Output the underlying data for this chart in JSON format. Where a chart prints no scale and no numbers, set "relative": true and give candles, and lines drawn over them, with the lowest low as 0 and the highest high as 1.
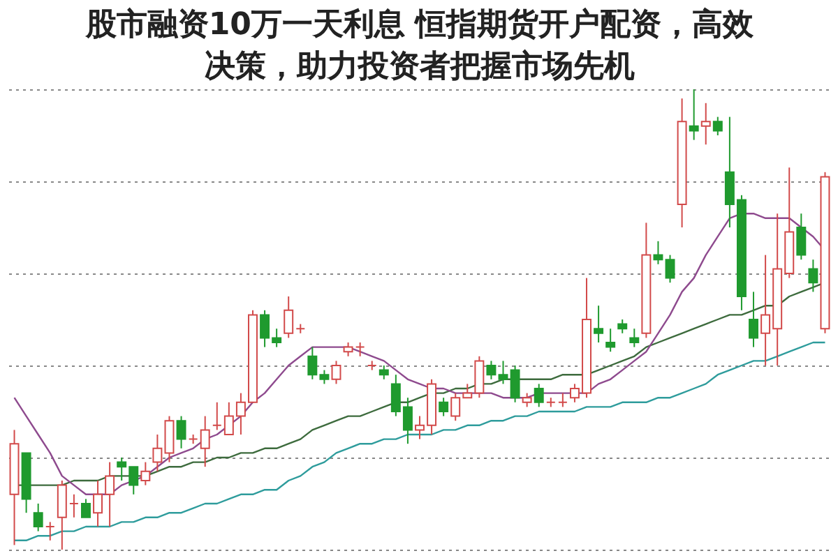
{
  "chart_data": {
    "type": "candlestick",
    "title": "股市融资10万一天利息 恒指期货开户配资，高效决策，助力投资者把握市场先机",
    "relative": true,
    "grid": "y",
    "categories": [
      null,
      null,
      null,
      null,
      null,
      null,
      null,
      null,
      null,
      null,
      null,
      null,
      null,
      null,
      null,
      null,
      null,
      null,
      null,
      null,
      null,
      null,
      null,
      null,
      null,
      null,
      null,
      null,
      null,
      null,
      null,
      null,
      null,
      null,
      null,
      null,
      null,
      null,
      null,
      null,
      null,
      null,
      null,
      null,
      null,
      null,
      null,
      null,
      null,
      null,
      null,
      null,
      null,
      null,
      null,
      null,
      null,
      null,
      null,
      null,
      null,
      null,
      null,
      null,
      null,
      null,
      null,
      null,
      null
    ],
    "ohlc": [
      [
        0.12,
        0.26,
        0.01,
        0.23
      ],
      [
        0.21,
        0.21,
        0.08,
        0.11
      ],
      [
        0.08,
        0.1,
        0.04,
        0.05
      ],
      [
        0.05,
        0.06,
        0.02,
        0.05
      ],
      [
        0.07,
        0.15,
        0,
        0.14
      ],
      [
        0.1,
        0.12,
        0.07,
        0.1
      ],
      [
        0.1,
        0.11,
        0.07,
        0.07
      ],
      [
        0.08,
        0.15,
        0.05,
        0.12
      ],
      [
        0.12,
        0.19,
        0.05,
        0.16
      ],
      [
        0.19,
        0.2,
        0.15,
        0.18
      ],
      [
        0.18,
        0.18,
        0.12,
        0.14
      ],
      [
        0.15,
        0.19,
        0.14,
        0.17
      ],
      [
        0.19,
        0.25,
        0.17,
        0.22
      ],
      [
        0.21,
        0.29,
        0.19,
        0.28
      ],
      [
        0.28,
        0.29,
        0.22,
        0.24
      ],
      [
        0.24,
        0.25,
        0.23,
        0.24
      ],
      [
        0.22,
        0.29,
        0.18,
        0.26
      ],
      [
        0.27,
        0.32,
        0.26,
        0.27
      ],
      [
        0.25,
        0.32,
        0.25,
        0.29
      ],
      [
        0.29,
        0.34,
        0.25,
        0.32
      ],
      [
        0.32,
        0.52,
        0.32,
        0.51
      ],
      [
        0.51,
        0.52,
        0.44,
        0.46
      ],
      [
        0.46,
        0.48,
        0.44,
        0.45
      ],
      [
        0.47,
        0.55,
        0.46,
        0.52
      ],
      [
        0.48,
        0.49,
        0.47,
        0.48
      ],
      [
        0.42,
        0.44,
        0.37,
        0.38
      ],
      [
        0.38,
        0.39,
        0.36,
        0.37
      ],
      [
        0.37,
        0.41,
        0.36,
        0.4
      ],
      [
        0.43,
        0.45,
        0.42,
        0.44
      ],
      [
        0.44,
        0.45,
        0.42,
        0.44
      ],
      [
        0.4,
        0.41,
        0.39,
        0.4
      ],
      [
        0.39,
        0.4,
        0.37,
        0.38
      ],
      [
        0.36,
        0.38,
        0.29,
        0.3
      ],
      [
        0.31,
        0.33,
        0.23,
        0.26
      ],
      [
        0.26,
        0.29,
        0.24,
        0.27
      ],
      [
        0.27,
        0.37,
        0.25,
        0.36
      ],
      [
        0.32,
        0.33,
        0.29,
        0.3
      ],
      [
        0.29,
        0.34,
        0.28,
        0.33
      ],
      [
        0.33,
        0.36,
        0.33,
        0.34
      ],
      [
        0.34,
        0.42,
        0.33,
        0.41
      ],
      [
        0.4,
        0.41,
        0.37,
        0.38
      ],
      [
        0.38,
        0.41,
        0.36,
        0.37
      ],
      [
        0.39,
        0.4,
        0.32,
        0.33
      ],
      [
        0.32,
        0.34,
        0.31,
        0.33
      ],
      [
        0.35,
        0.36,
        0.31,
        0.32
      ],
      [
        0.32,
        0.33,
        0.31,
        0.32
      ],
      [
        0.32,
        0.34,
        0.31,
        0.32
      ],
      [
        0.33,
        0.36,
        0.32,
        0.35
      ],
      [
        0.34,
        0.59,
        0.33,
        0.5
      ],
      [
        0.48,
        0.53,
        0.45,
        0.47
      ],
      [
        0.45,
        0.48,
        0.43,
        0.44
      ],
      [
        0.49,
        0.5,
        0.47,
        0.48
      ],
      [
        0.46,
        0.48,
        0.44,
        0.45
      ],
      [
        0.47,
        0.71,
        0.46,
        0.64
      ],
      [
        0.64,
        0.67,
        0.62,
        0.63
      ],
      [
        0.63,
        0.64,
        0.58,
        0.59
      ],
      [
        0.75,
        0.98,
        0.7,
        0.93
      ],
      [
        0.92,
        1,
        0.89,
        0.91
      ],
      [
        0.92,
        0.97,
        0.88,
        0.93
      ],
      [
        0.93,
        0.94,
        0.9,
        0.91
      ],
      [
        0.82,
        0.94,
        0.7,
        0.75
      ],
      [
        0.76,
        0.77,
        0.52,
        0.55
      ],
      [
        0.5,
        0.56,
        0.44,
        0.46
      ],
      [
        0.47,
        0.64,
        0.4,
        0.51
      ],
      [
        0.48,
        0.73,
        0.4,
        0.61
      ],
      [
        0.6,
        0.83,
        0.59,
        0.69
      ],
      [
        0.7,
        0.73,
        0.63,
        0.64
      ],
      [
        0.61,
        0.63,
        0.56,
        0.58
      ],
      [
        0.48,
        0.82,
        0.47,
        0.81
      ]
    ],
    "series": [
      {
        "type": "line",
        "color": "#2e9c9c",
        "values": [
          0.02,
          0.02,
          0.03,
          0.03,
          0.04,
          0.04,
          0.05,
          0.05,
          0.05,
          0.06,
          0.06,
          0.07,
          0.07,
          0.08,
          0.08,
          0.09,
          0.1,
          0.1,
          0.11,
          0.12,
          0.12,
          0.13,
          0.13,
          0.15,
          0.16,
          0.18,
          0.19,
          0.21,
          0.22,
          0.23,
          0.23,
          0.24,
          0.24,
          0.25,
          0.25,
          0.25,
          0.26,
          0.26,
          0.27,
          0.27,
          0.28,
          0.28,
          0.29,
          0.29,
          0.3,
          0.3,
          0.3,
          0.3,
          0.31,
          0.31,
          0.31,
          0.32,
          0.32,
          0.32,
          0.33,
          0.33,
          0.34,
          0.35,
          0.36,
          0.38,
          0.39,
          0.4,
          0.41,
          0.41,
          0.42,
          0.43,
          0.44,
          0.45,
          0.45
        ]
      },
      {
        "type": "line",
        "color": "#3d6b3d",
        "values": [
          0.14,
          0.14,
          0.14,
          0.14,
          0.14,
          0.15,
          0.15,
          0.15,
          0.16,
          0.16,
          0.16,
          0.16,
          0.17,
          0.18,
          0.18,
          0.19,
          0.19,
          0.2,
          0.2,
          0.21,
          0.21,
          0.22,
          0.22,
          0.23,
          0.24,
          0.26,
          0.27,
          0.28,
          0.29,
          0.29,
          0.3,
          0.31,
          0.32,
          0.32,
          0.33,
          0.34,
          0.34,
          0.35,
          0.35,
          0.36,
          0.36,
          0.37,
          0.37,
          0.37,
          0.37,
          0.37,
          0.38,
          0.38,
          0.38,
          0.39,
          0.4,
          0.41,
          0.42,
          0.44,
          0.45,
          0.46,
          0.47,
          0.48,
          0.49,
          0.5,
          0.51,
          0.51,
          0.52,
          0.53,
          0.53,
          0.55,
          0.56,
          0.57,
          0.58
        ]
      },
      {
        "type": "line",
        "color": "#8e4a8e",
        "values": [
          0.33,
          0.29,
          0.25,
          0.21,
          0.16,
          0.14,
          0.12,
          0.12,
          0.12,
          0.14,
          0.15,
          0.16,
          0.18,
          0.2,
          0.21,
          0.22,
          0.24,
          0.25,
          0.27,
          0.29,
          0.32,
          0.34,
          0.37,
          0.4,
          0.42,
          0.44,
          0.44,
          0.44,
          0.44,
          0.43,
          0.42,
          0.41,
          0.39,
          0.37,
          0.36,
          0.35,
          0.35,
          0.34,
          0.34,
          0.34,
          0.34,
          0.33,
          0.33,
          0.33,
          0.34,
          0.34,
          0.34,
          0.34,
          0.34,
          0.36,
          0.37,
          0.39,
          0.41,
          0.43,
          0.47,
          0.51,
          0.56,
          0.59,
          0.64,
          0.68,
          0.72,
          0.73,
          0.73,
          0.72,
          0.72,
          0.72,
          0.7,
          0.68,
          0.65
        ]
      }
    ]
  }
}
